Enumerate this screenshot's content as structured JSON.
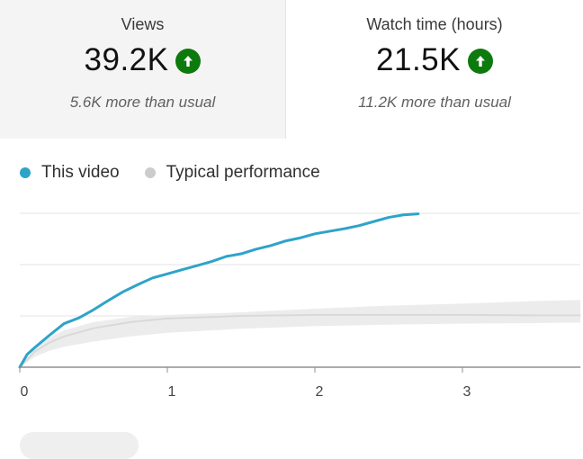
{
  "cards": [
    {
      "title": "Views",
      "value": "39.2K",
      "trend_icon": "arrow-up-icon",
      "subtext": "5.6K more than usual"
    },
    {
      "title": "Watch time (hours)",
      "value": "21.5K",
      "trend_icon": "arrow-up-icon",
      "subtext": "11.2K more than usual"
    }
  ],
  "legend": {
    "this_video": {
      "label": "This video",
      "color": "#2ea3c9"
    },
    "typical": {
      "label": "Typical performance",
      "color": "#cccccc"
    }
  },
  "colors": {
    "trend_up": "#0c7a0c",
    "band": "#ececec"
  },
  "chart_data": {
    "type": "line",
    "x_ticks": [
      "0",
      "1",
      "2",
      "3"
    ],
    "xlim": [
      0,
      3.8
    ],
    "ylim": [
      0,
      3
    ],
    "grid": true,
    "series": [
      {
        "name": "This video",
        "x": [
          0,
          0.05,
          0.1,
          0.2,
          0.3,
          0.4,
          0.5,
          0.6,
          0.7,
          0.8,
          0.9,
          1.0,
          1.1,
          1.2,
          1.3,
          1.4,
          1.5,
          1.6,
          1.7,
          1.8,
          1.9,
          2.0,
          2.1,
          2.2,
          2.3,
          2.4,
          2.5,
          2.6,
          2.7
        ],
        "y": [
          0,
          0.25,
          0.38,
          0.62,
          0.85,
          0.96,
          1.12,
          1.3,
          1.47,
          1.61,
          1.74,
          1.82,
          1.9,
          1.98,
          2.06,
          2.16,
          2.21,
          2.3,
          2.37,
          2.46,
          2.52,
          2.6,
          2.65,
          2.7,
          2.76,
          2.84,
          2.92,
          2.97,
          2.99
        ]
      },
      {
        "name": "Typical performance",
        "x": [
          0,
          0.1,
          0.2,
          0.3,
          0.5,
          0.75,
          1.0,
          1.5,
          2.0,
          2.5,
          3.0,
          3.5,
          3.8
        ],
        "y": [
          0,
          0.3,
          0.48,
          0.6,
          0.76,
          0.88,
          0.95,
          1.0,
          1.02,
          1.02,
          1.02,
          1.01,
          1.01
        ],
        "upper": [
          0,
          0.36,
          0.58,
          0.72,
          0.88,
          0.98,
          1.02,
          1.07,
          1.14,
          1.2,
          1.24,
          1.29,
          1.31
        ],
        "lower": [
          0,
          0.2,
          0.32,
          0.4,
          0.5,
          0.6,
          0.67,
          0.75,
          0.8,
          0.83,
          0.85,
          0.86,
          0.87
        ]
      }
    ]
  }
}
